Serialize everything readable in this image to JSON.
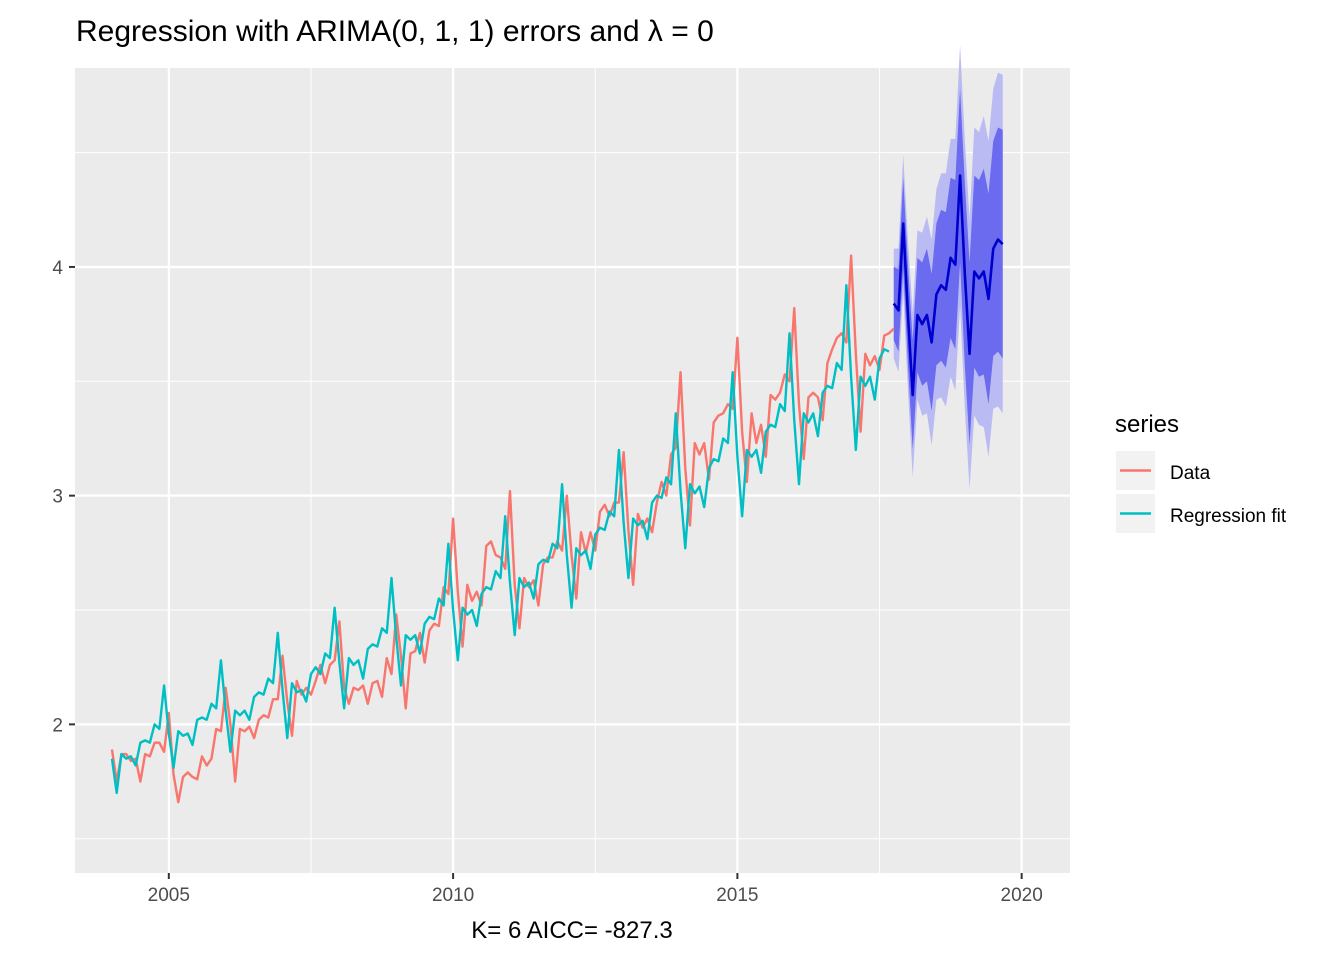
{
  "chart_data": {
    "type": "line",
    "title": "Regression with ARIMA(0, 1, 1) errors and λ = 0",
    "xlabel": "K= 6    AICC= -827.3",
    "ylabel": "",
    "xlim": [
      2003.35,
      2020.85
    ],
    "ylim": [
      1.35,
      4.87
    ],
    "x_ticks": [
      2005,
      2010,
      2015,
      2020
    ],
    "y_ticks": [
      2,
      3,
      4
    ],
    "grid": true,
    "legend": {
      "title": "series",
      "placement": "right",
      "entries": [
        {
          "label": "Data",
          "color": "#F8766D"
        },
        {
          "label": "Regression fit",
          "color": "#00BFC4"
        }
      ]
    },
    "series": [
      {
        "name": "Data",
        "color": "#F8766D",
        "x_start": 2004.0,
        "step": 0.08333333,
        "values": [
          1.89,
          1.75,
          1.87,
          1.87,
          1.84,
          1.85,
          1.75,
          1.87,
          1.86,
          1.92,
          1.92,
          1.88,
          2.05,
          1.78,
          1.66,
          1.77,
          1.79,
          1.77,
          1.76,
          1.86,
          1.82,
          1.85,
          1.98,
          1.97,
          2.16,
          2.0,
          1.75,
          1.98,
          1.97,
          1.99,
          1.94,
          2.02,
          2.04,
          2.03,
          2.11,
          2.11,
          2.3,
          2.1,
          1.95,
          2.19,
          2.13,
          2.16,
          2.13,
          2.19,
          2.26,
          2.18,
          2.26,
          2.28,
          2.45,
          2.16,
          2.09,
          2.16,
          2.15,
          2.17,
          2.09,
          2.18,
          2.19,
          2.12,
          2.29,
          2.22,
          2.48,
          2.3,
          2.07,
          2.31,
          2.32,
          2.4,
          2.27,
          2.41,
          2.44,
          2.43,
          2.6,
          2.57,
          2.9,
          2.58,
          2.34,
          2.61,
          2.54,
          2.58,
          2.52,
          2.78,
          2.8,
          2.74,
          2.73,
          2.68,
          3.02,
          2.61,
          2.42,
          2.64,
          2.6,
          2.63,
          2.52,
          2.7,
          2.73,
          2.73,
          2.8,
          2.76,
          3.0,
          2.74,
          2.55,
          2.84,
          2.75,
          2.84,
          2.76,
          2.93,
          2.96,
          2.91,
          2.97,
          2.97,
          3.19,
          2.85,
          2.61,
          2.92,
          2.86,
          2.9,
          2.84,
          2.97,
          3.06,
          3.0,
          3.18,
          3.21,
          3.54,
          3.12,
          2.87,
          3.23,
          3.18,
          3.23,
          3.07,
          3.32,
          3.35,
          3.36,
          3.4,
          3.38,
          3.69,
          3.28,
          3.06,
          3.36,
          3.23,
          3.31,
          3.17,
          3.44,
          3.42,
          3.45,
          3.53,
          3.5,
          3.82,
          3.4,
          3.16,
          3.43,
          3.45,
          3.43,
          3.33,
          3.58,
          3.64,
          3.69,
          3.71,
          3.67,
          4.05,
          3.62,
          3.28,
          3.62,
          3.57,
          3.61,
          3.55,
          3.7,
          3.71,
          3.73
        ]
      },
      {
        "name": "Regression fit",
        "color": "#00BFC4",
        "x_start": 2004.0,
        "step": 0.08333333,
        "values": [
          1.85,
          1.7,
          1.87,
          1.85,
          1.86,
          1.82,
          1.92,
          1.93,
          1.92,
          2.0,
          1.98,
          2.17,
          1.96,
          1.81,
          1.97,
          1.95,
          1.96,
          1.91,
          2.02,
          2.03,
          2.02,
          2.09,
          2.07,
          2.28,
          2.06,
          1.88,
          2.06,
          2.04,
          2.06,
          2.02,
          2.12,
          2.14,
          2.13,
          2.2,
          2.18,
          2.4,
          2.15,
          1.94,
          2.18,
          2.14,
          2.15,
          2.1,
          2.22,
          2.25,
          2.22,
          2.31,
          2.29,
          2.51,
          2.27,
          2.07,
          2.29,
          2.26,
          2.28,
          2.2,
          2.33,
          2.35,
          2.34,
          2.42,
          2.4,
          2.64,
          2.38,
          2.17,
          2.39,
          2.37,
          2.39,
          2.31,
          2.44,
          2.47,
          2.46,
          2.55,
          2.52,
          2.79,
          2.5,
          2.28,
          2.51,
          2.48,
          2.5,
          2.43,
          2.57,
          2.6,
          2.59,
          2.67,
          2.64,
          2.91,
          2.62,
          2.39,
          2.64,
          2.6,
          2.62,
          2.55,
          2.7,
          2.72,
          2.71,
          2.79,
          2.77,
          3.05,
          2.74,
          2.51,
          2.77,
          2.74,
          2.76,
          2.68,
          2.83,
          2.86,
          2.85,
          2.93,
          2.91,
          3.2,
          2.88,
          2.64,
          2.9,
          2.87,
          2.89,
          2.81,
          2.97,
          3.0,
          2.99,
          3.08,
          3.05,
          3.36,
          3.02,
          2.77,
          3.05,
          3.01,
          3.04,
          2.95,
          3.12,
          3.16,
          3.15,
          3.25,
          3.23,
          3.54,
          3.17,
          2.91,
          3.2,
          3.17,
          3.2,
          3.1,
          3.28,
          3.31,
          3.3,
          3.4,
          3.37,
          3.71,
          3.33,
          3.05,
          3.36,
          3.32,
          3.36,
          3.26,
          3.45,
          3.48,
          3.47,
          3.58,
          3.55,
          3.92,
          3.52,
          3.2,
          3.52,
          3.48,
          3.52,
          3.42,
          3.6,
          3.64,
          3.63
        ]
      },
      {
        "name": "",
        "role": "forecast",
        "color": "#0000CD",
        "band_80_color": "#6B6BF0",
        "band_95_color": "#BBBBF4",
        "x_start": 2017.75,
        "step": 0.08333333,
        "values": [
          3.84,
          3.81,
          4.19,
          3.79,
          3.44,
          3.79,
          3.75,
          3.79,
          3.67,
          3.88,
          3.92,
          3.9,
          4.04,
          4.01,
          4.4,
          3.97,
          3.62,
          3.98,
          3.95,
          3.98,
          3.86,
          4.08,
          4.12,
          4.1
        ],
        "lo80": [
          3.68,
          3.63,
          3.99,
          3.57,
          3.2,
          3.54,
          3.48,
          3.5,
          3.37,
          3.57,
          3.59,
          3.56,
          3.69,
          3.64,
          4.02,
          3.57,
          3.22,
          3.56,
          3.52,
          3.53,
          3.4,
          3.61,
          3.63,
          3.6
        ],
        "hi80": [
          4.0,
          3.99,
          4.39,
          4.01,
          3.68,
          4.04,
          4.02,
          4.08,
          3.97,
          4.19,
          4.25,
          4.24,
          4.39,
          4.38,
          4.78,
          4.37,
          4.02,
          4.4,
          4.38,
          4.43,
          4.32,
          4.55,
          4.61,
          4.6
        ],
        "lo95": [
          3.6,
          3.54,
          3.89,
          3.46,
          3.08,
          3.42,
          3.35,
          3.36,
          3.22,
          3.42,
          3.43,
          3.39,
          3.52,
          3.46,
          3.83,
          3.38,
          3.03,
          3.35,
          3.31,
          3.3,
          3.17,
          3.38,
          3.39,
          3.36
        ],
        "hi95": [
          4.08,
          4.08,
          4.49,
          4.12,
          3.8,
          4.16,
          4.15,
          4.22,
          4.12,
          4.34,
          4.41,
          4.41,
          4.56,
          4.56,
          4.97,
          4.56,
          4.21,
          4.61,
          4.59,
          4.66,
          4.55,
          4.78,
          4.85,
          4.84
        ]
      }
    ]
  }
}
